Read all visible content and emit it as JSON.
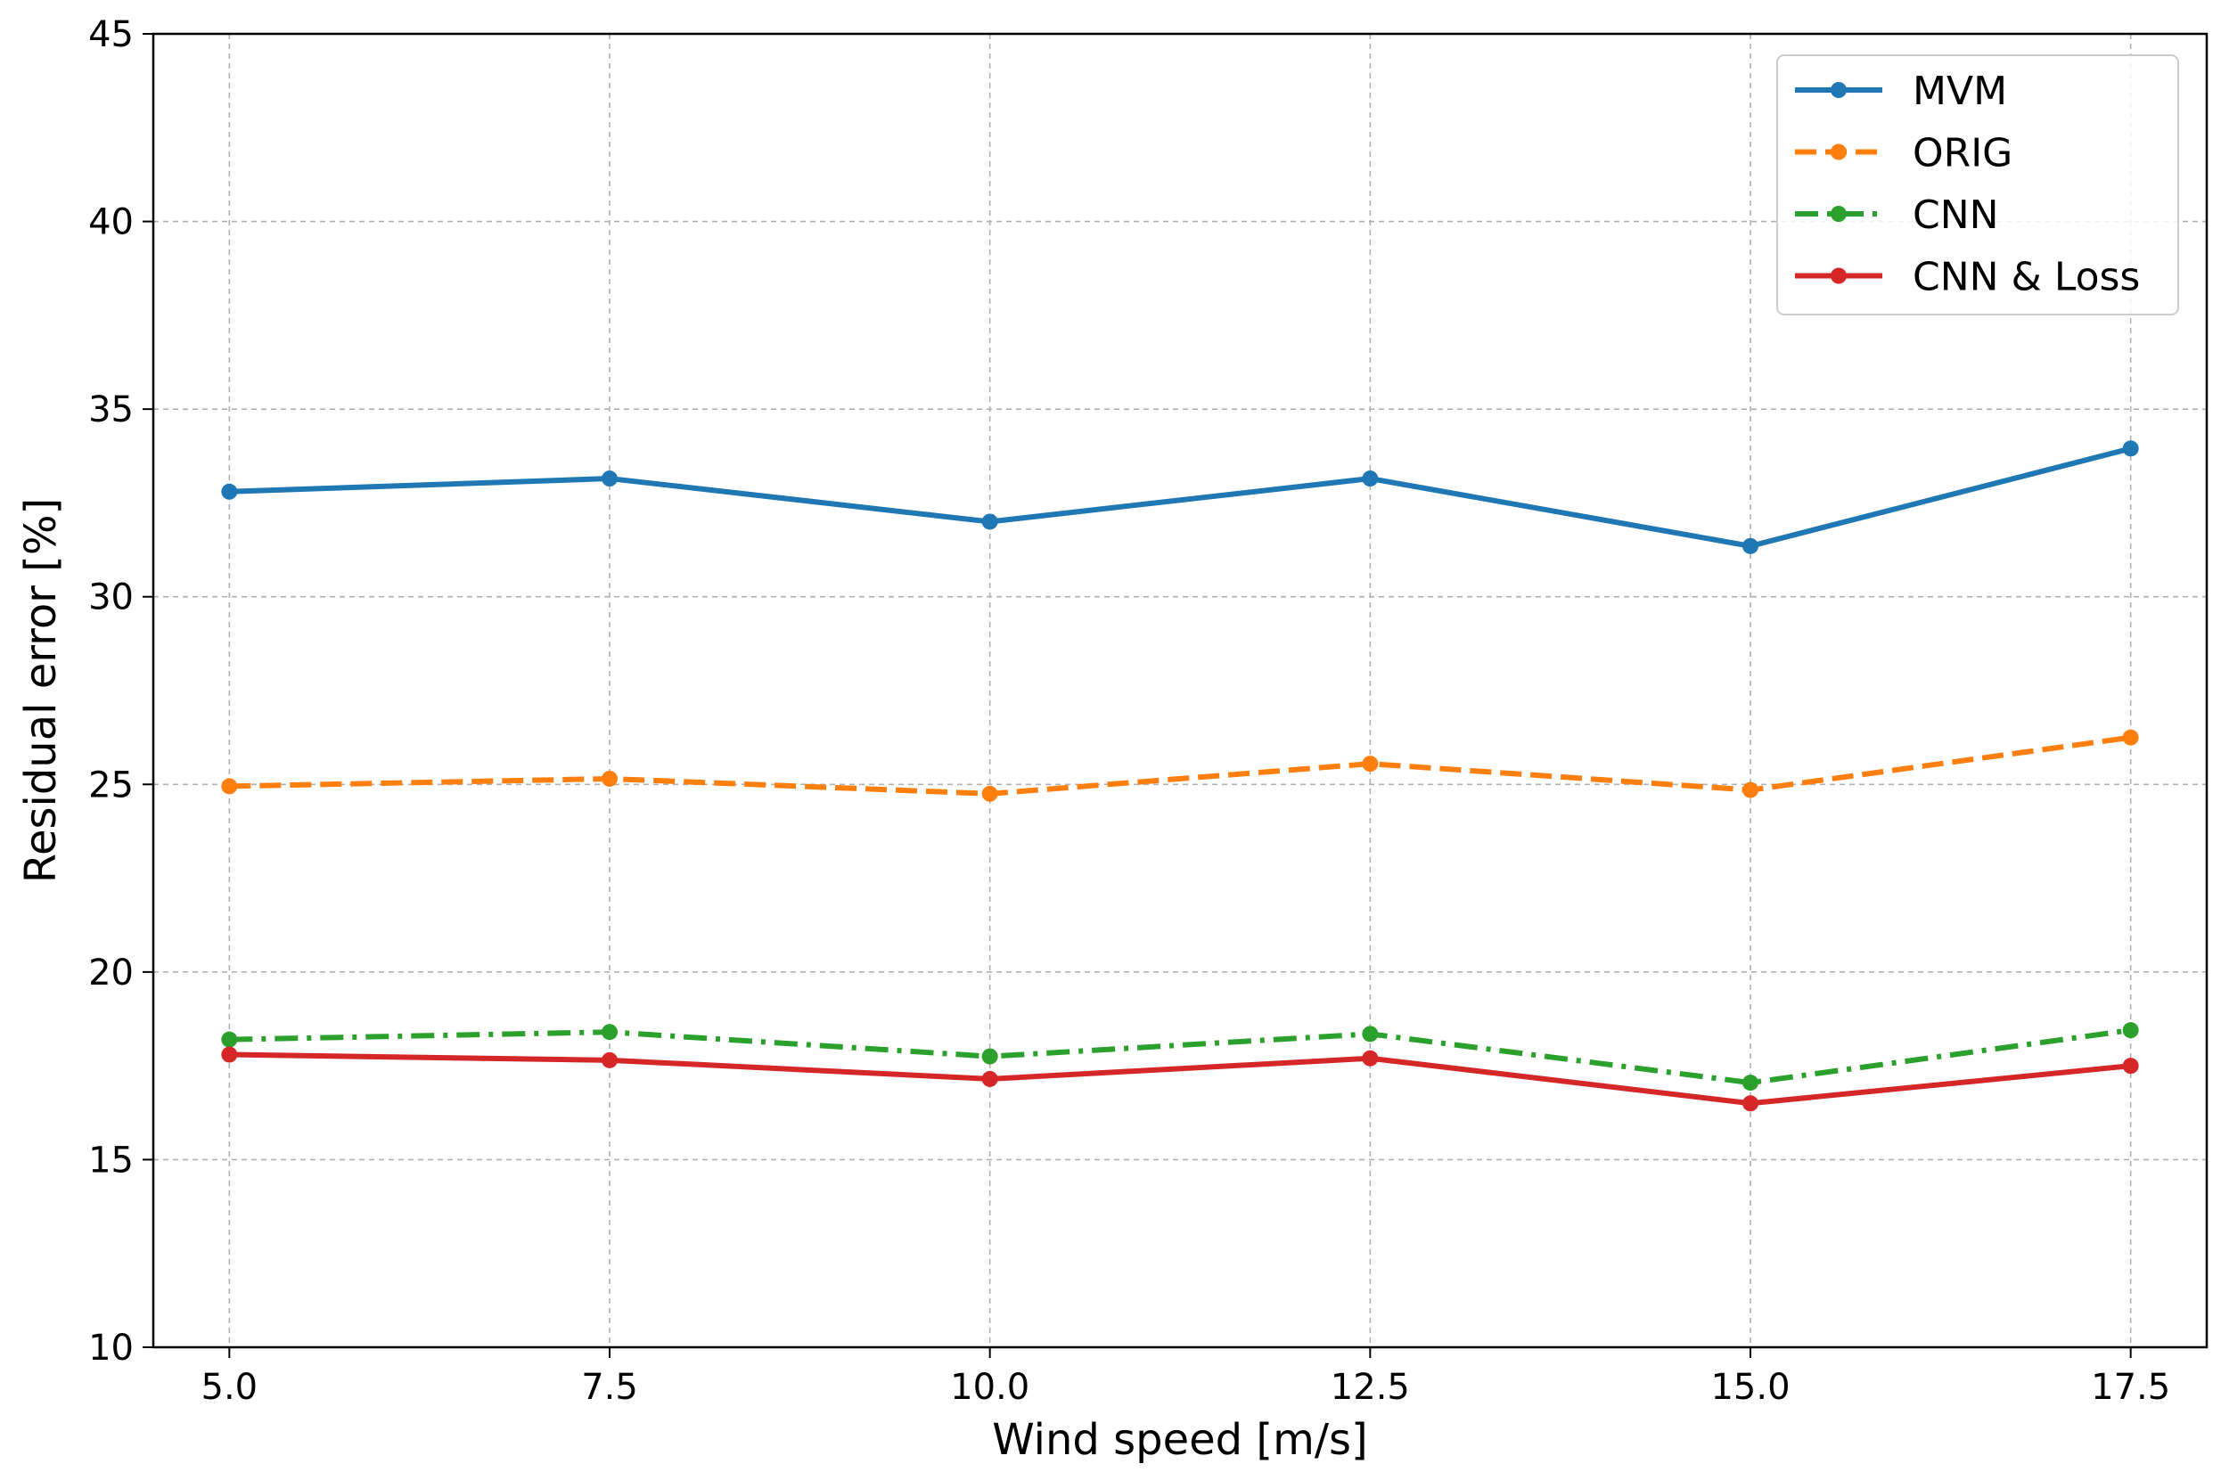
{
  "chart_data": {
    "type": "line",
    "title": "",
    "xlabel": "Wind speed [m/s]",
    "ylabel": "Residual error [%]",
    "x": [
      5.0,
      7.5,
      10.0,
      12.5,
      15.0,
      17.5
    ],
    "xlim": [
      4.5,
      18.0
    ],
    "ylim": [
      10,
      45
    ],
    "xticks": [
      "5.0",
      "7.5",
      "10.0",
      "12.5",
      "15.0",
      "17.5"
    ],
    "yticks": [
      "10",
      "15",
      "20",
      "25",
      "30",
      "35",
      "40",
      "45"
    ],
    "grid": true,
    "legend_position": "top-right",
    "series": [
      {
        "name": "MVM",
        "color": "#1f77b4",
        "style": "solid",
        "values": [
          32.8,
          33.15,
          32.0,
          33.15,
          31.35,
          33.95
        ]
      },
      {
        "name": "ORIG",
        "color": "#ff7f0e",
        "style": "dashed",
        "values": [
          24.95,
          25.15,
          24.75,
          25.55,
          24.85,
          26.25
        ]
      },
      {
        "name": "CNN",
        "color": "#2ca02c",
        "style": "dashdot",
        "values": [
          18.2,
          18.4,
          17.75,
          18.35,
          17.05,
          18.45
        ]
      },
      {
        "name": "CNN & Loss",
        "color": "#d62728",
        "style": "solid",
        "values": [
          17.8,
          17.65,
          17.15,
          17.7,
          16.5,
          17.5
        ]
      }
    ]
  }
}
